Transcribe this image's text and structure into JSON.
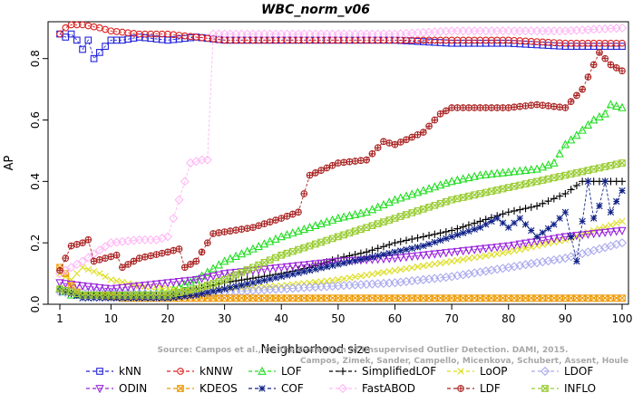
{
  "chart_data": {
    "type": "line",
    "title": "WBC_norm_v06",
    "xlabel": "Neighborhood size",
    "ylabel": "AP",
    "xlim": [
      0,
      100
    ],
    "ylim": [
      0,
      0.92
    ],
    "xticks": [
      1,
      10,
      20,
      30,
      40,
      50,
      60,
      70,
      80,
      90,
      100
    ],
    "yticks": [
      0.0,
      0.2,
      0.4,
      0.6,
      0.8
    ],
    "ytick_labels": [
      "0.0",
      "0.2",
      "0.4",
      "0.6",
      "0.8"
    ],
    "watermark": [
      "Source: Campos et al., On the Evaluation of Unsupervised Outlier Detection. DAMI, 2015.",
      "Campos, Zimek, Sander, Campello, Micenkova, Schubert, Assent, Houle"
    ],
    "series": [
      {
        "name": "kNN",
        "color": "#2222dd",
        "marker": "square",
        "values": [
          [
            1,
            0.88
          ],
          [
            2,
            0.87
          ],
          [
            3,
            0.88
          ],
          [
            4,
            0.86
          ],
          [
            5,
            0.83
          ],
          [
            6,
            0.86
          ],
          [
            7,
            0.8
          ],
          [
            8,
            0.82
          ],
          [
            10,
            0.86
          ],
          [
            12,
            0.86
          ],
          [
            15,
            0.87
          ],
          [
            20,
            0.86
          ],
          [
            25,
            0.87
          ],
          [
            30,
            0.86
          ],
          [
            40,
            0.86
          ],
          [
            50,
            0.86
          ],
          [
            60,
            0.86
          ],
          [
            70,
            0.85
          ],
          [
            80,
            0.85
          ],
          [
            90,
            0.84
          ],
          [
            100,
            0.84
          ]
        ]
      },
      {
        "name": "kNNW",
        "color": "#dd2222",
        "marker": "circle",
        "values": [
          [
            1,
            0.88
          ],
          [
            2,
            0.9
          ],
          [
            3,
            0.91
          ],
          [
            5,
            0.91
          ],
          [
            8,
            0.9
          ],
          [
            10,
            0.89
          ],
          [
            15,
            0.88
          ],
          [
            20,
            0.88
          ],
          [
            25,
            0.87
          ],
          [
            30,
            0.86
          ],
          [
            40,
            0.86
          ],
          [
            50,
            0.86
          ],
          [
            60,
            0.86
          ],
          [
            70,
            0.86
          ],
          [
            80,
            0.86
          ],
          [
            90,
            0.85
          ],
          [
            100,
            0.85
          ]
        ]
      },
      {
        "name": "LOF",
        "color": "#22dd22",
        "marker": "triangle",
        "values": [
          [
            1,
            0.05
          ],
          [
            3,
            0.03
          ],
          [
            5,
            0.03
          ],
          [
            10,
            0.03
          ],
          [
            15,
            0.03
          ],
          [
            20,
            0.04
          ],
          [
            25,
            0.08
          ],
          [
            30,
            0.14
          ],
          [
            35,
            0.18
          ],
          [
            40,
            0.22
          ],
          [
            45,
            0.25
          ],
          [
            50,
            0.28
          ],
          [
            55,
            0.3
          ],
          [
            60,
            0.34
          ],
          [
            65,
            0.37
          ],
          [
            70,
            0.4
          ],
          [
            75,
            0.42
          ],
          [
            80,
            0.43
          ],
          [
            85,
            0.44
          ],
          [
            88,
            0.46
          ],
          [
            90,
            0.52
          ],
          [
            92,
            0.55
          ],
          [
            95,
            0.6
          ],
          [
            97,
            0.62
          ],
          [
            98,
            0.65
          ],
          [
            100,
            0.64
          ]
        ]
      },
      {
        "name": "SimplifiedLOF",
        "color": "#000000",
        "marker": "plus",
        "values": [
          [
            1,
            0.04
          ],
          [
            5,
            0.03
          ],
          [
            10,
            0.03
          ],
          [
            20,
            0.03
          ],
          [
            25,
            0.05
          ],
          [
            30,
            0.07
          ],
          [
            40,
            0.1
          ],
          [
            45,
            0.12
          ],
          [
            50,
            0.15
          ],
          [
            55,
            0.17
          ],
          [
            60,
            0.2
          ],
          [
            65,
            0.22
          ],
          [
            70,
            0.24
          ],
          [
            75,
            0.27
          ],
          [
            80,
            0.3
          ],
          [
            85,
            0.32
          ],
          [
            90,
            0.36
          ],
          [
            93,
            0.4
          ],
          [
            95,
            0.4
          ],
          [
            100,
            0.4
          ]
        ]
      },
      {
        "name": "LoOP",
        "color": "#dddd22",
        "marker": "cross",
        "values": [
          [
            1,
            0.1
          ],
          [
            3,
            0.08
          ],
          [
            5,
            0.12
          ],
          [
            8,
            0.1
          ],
          [
            10,
            0.08
          ],
          [
            15,
            0.06
          ],
          [
            20,
            0.05
          ],
          [
            25,
            0.04
          ],
          [
            30,
            0.05
          ],
          [
            40,
            0.06
          ],
          [
            50,
            0.08
          ],
          [
            60,
            0.11
          ],
          [
            70,
            0.14
          ],
          [
            80,
            0.17
          ],
          [
            90,
            0.21
          ],
          [
            100,
            0.27
          ]
        ]
      },
      {
        "name": "LDOF",
        "color": "#aaaaee",
        "marker": "diamond",
        "values": [
          [
            1,
            0.04
          ],
          [
            5,
            0.04
          ],
          [
            10,
            0.04
          ],
          [
            20,
            0.03
          ],
          [
            30,
            0.04
          ],
          [
            40,
            0.05
          ],
          [
            50,
            0.06
          ],
          [
            60,
            0.07
          ],
          [
            70,
            0.09
          ],
          [
            80,
            0.12
          ],
          [
            90,
            0.15
          ],
          [
            100,
            0.2
          ]
        ]
      },
      {
        "name": "ODIN",
        "color": "#9922dd",
        "marker": "triangle-down",
        "values": [
          [
            1,
            0.07
          ],
          [
            5,
            0.06
          ],
          [
            10,
            0.05
          ],
          [
            15,
            0.06
          ],
          [
            20,
            0.07
          ],
          [
            25,
            0.08
          ],
          [
            30,
            0.1
          ],
          [
            40,
            0.12
          ],
          [
            50,
            0.14
          ],
          [
            60,
            0.15
          ],
          [
            70,
            0.17
          ],
          [
            80,
            0.19
          ],
          [
            90,
            0.22
          ],
          [
            100,
            0.24
          ]
        ]
      },
      {
        "name": "KDEOS",
        "color": "#ee9900",
        "marker": "box-x",
        "values": [
          [
            1,
            0.12
          ],
          [
            2,
            0.1
          ],
          [
            3,
            0.06
          ],
          [
            4,
            0.04
          ],
          [
            5,
            0.03
          ],
          [
            8,
            0.03
          ],
          [
            12,
            0.02
          ],
          [
            20,
            0.02
          ],
          [
            30,
            0.02
          ],
          [
            40,
            0.02
          ],
          [
            50,
            0.02
          ],
          [
            60,
            0.02
          ],
          [
            70,
            0.02
          ],
          [
            80,
            0.02
          ],
          [
            90,
            0.02
          ],
          [
            100,
            0.02
          ]
        ]
      },
      {
        "name": "COF",
        "color": "#112288",
        "marker": "star",
        "values": [
          [
            1,
            0.05
          ],
          [
            5,
            0.02
          ],
          [
            10,
            0.02
          ],
          [
            20,
            0.02
          ],
          [
            25,
            0.03
          ],
          [
            30,
            0.05
          ],
          [
            35,
            0.07
          ],
          [
            40,
            0.09
          ],
          [
            45,
            0.11
          ],
          [
            50,
            0.13
          ],
          [
            55,
            0.15
          ],
          [
            60,
            0.17
          ],
          [
            65,
            0.19
          ],
          [
            70,
            0.22
          ],
          [
            75,
            0.25
          ],
          [
            78,
            0.28
          ],
          [
            80,
            0.25
          ],
          [
            82,
            0.28
          ],
          [
            85,
            0.22
          ],
          [
            88,
            0.26
          ],
          [
            90,
            0.3
          ],
          [
            92,
            0.14
          ],
          [
            94,
            0.4
          ],
          [
            95,
            0.28
          ],
          [
            96,
            0.32
          ],
          [
            97,
            0.4
          ],
          [
            98,
            0.3
          ],
          [
            100,
            0.37
          ]
        ]
      },
      {
        "name": "FastABOD",
        "color": "#ffb8f5",
        "marker": "diamond",
        "values": [
          [
            1,
            0.1
          ],
          [
            5,
            0.14
          ],
          [
            10,
            0.2
          ],
          [
            15,
            0.21
          ],
          [
            18,
            0.21
          ],
          [
            20,
            0.22
          ],
          [
            22,
            0.34
          ],
          [
            24,
            0.46
          ],
          [
            26,
            0.47
          ],
          [
            27,
            0.47
          ],
          [
            28,
            0.88
          ],
          [
            35,
            0.88
          ],
          [
            50,
            0.88
          ],
          [
            60,
            0.88
          ],
          [
            70,
            0.89
          ],
          [
            80,
            0.89
          ],
          [
            90,
            0.89
          ],
          [
            100,
            0.9
          ]
        ]
      },
      {
        "name": "LDF",
        "color": "#aa2222",
        "marker": "circle-plus",
        "values": [
          [
            1,
            0.11
          ],
          [
            2,
            0.15
          ],
          [
            3,
            0.19
          ],
          [
            5,
            0.2
          ],
          [
            6,
            0.21
          ],
          [
            7,
            0.14
          ],
          [
            9,
            0.15
          ],
          [
            11,
            0.16
          ],
          [
            12,
            0.12
          ],
          [
            15,
            0.15
          ],
          [
            20,
            0.17
          ],
          [
            22,
            0.18
          ],
          [
            23,
            0.12
          ],
          [
            25,
            0.14
          ],
          [
            27,
            0.2
          ],
          [
            28,
            0.23
          ],
          [
            35,
            0.25
          ],
          [
            40,
            0.28
          ],
          [
            43,
            0.3
          ],
          [
            45,
            0.42
          ],
          [
            50,
            0.46
          ],
          [
            55,
            0.47
          ],
          [
            58,
            0.53
          ],
          [
            60,
            0.52
          ],
          [
            65,
            0.56
          ],
          [
            68,
            0.62
          ],
          [
            70,
            0.64
          ],
          [
            80,
            0.64
          ],
          [
            85,
            0.65
          ],
          [
            90,
            0.64
          ],
          [
            93,
            0.7
          ],
          [
            95,
            0.78
          ],
          [
            96,
            0.82
          ],
          [
            98,
            0.78
          ],
          [
            100,
            0.76
          ]
        ]
      },
      {
        "name": "INFLO",
        "color": "#99cc33",
        "marker": "box-x",
        "values": [
          [
            1,
            0.05
          ],
          [
            5,
            0.03
          ],
          [
            10,
            0.03
          ],
          [
            20,
            0.03
          ],
          [
            25,
            0.05
          ],
          [
            30,
            0.08
          ],
          [
            35,
            0.12
          ],
          [
            40,
            0.16
          ],
          [
            45,
            0.19
          ],
          [
            50,
            0.22
          ],
          [
            55,
            0.25
          ],
          [
            60,
            0.28
          ],
          [
            65,
            0.31
          ],
          [
            70,
            0.34
          ],
          [
            75,
            0.36
          ],
          [
            80,
            0.38
          ],
          [
            85,
            0.4
          ],
          [
            90,
            0.42
          ],
          [
            95,
            0.44
          ],
          [
            100,
            0.46
          ]
        ]
      }
    ]
  }
}
